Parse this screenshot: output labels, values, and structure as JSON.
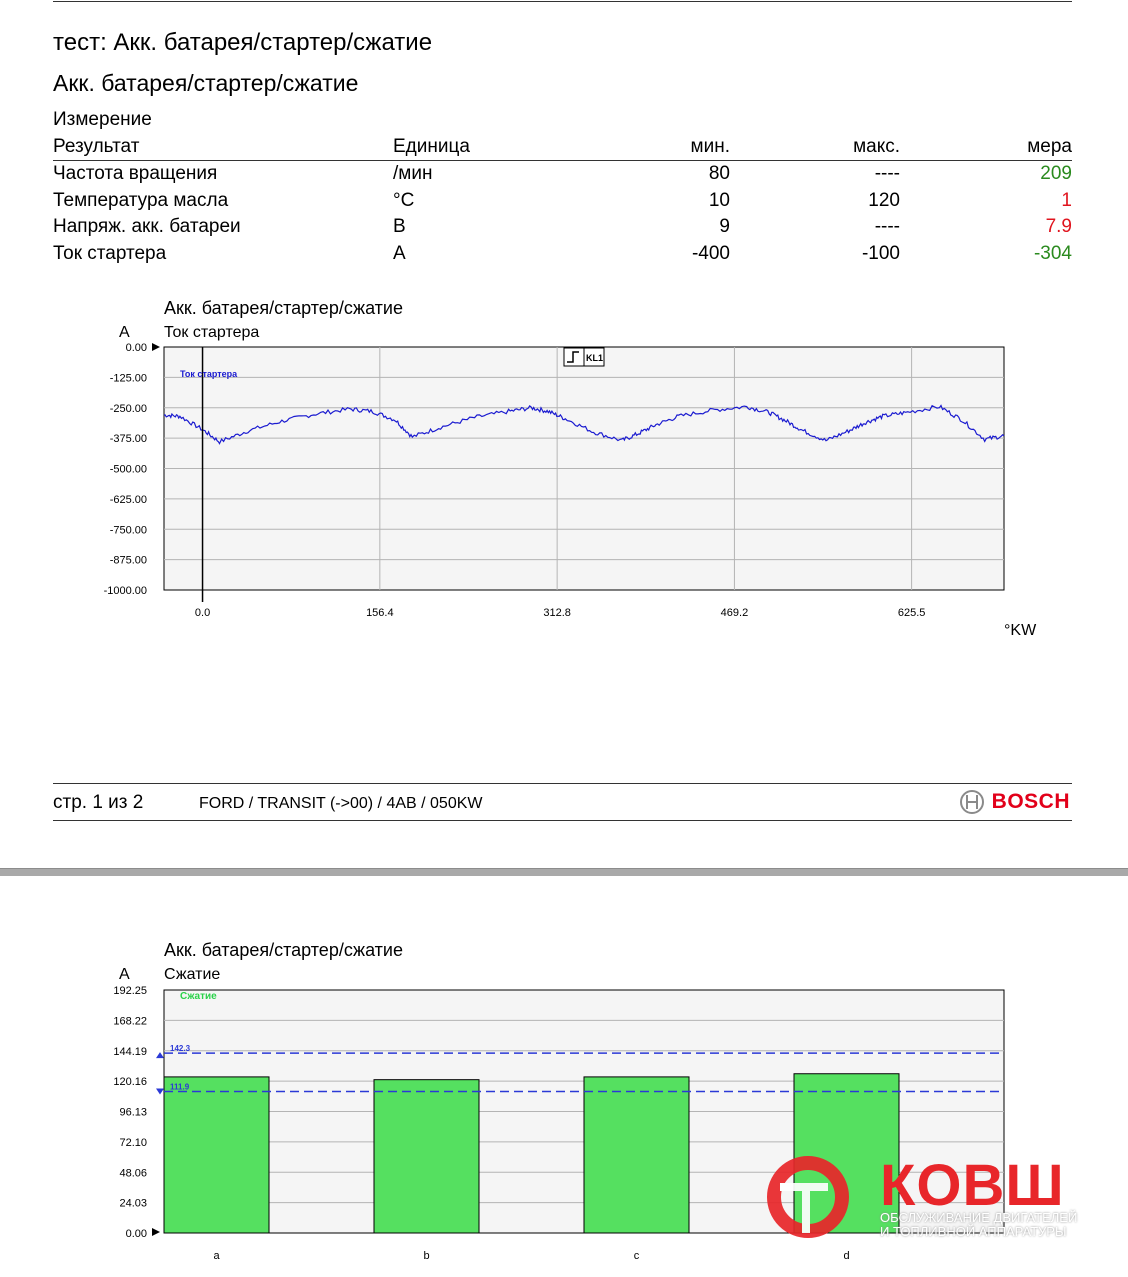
{
  "report": {
    "title": "тест: Акк. батарея/стартер/сжатие",
    "subtitle": "Акк. батарея/стартер/сжатие",
    "section_label": "Измерение",
    "table": {
      "headers": {
        "result": "Результат",
        "unit": "Единица",
        "min": "мин.",
        "max": "макс.",
        "measure": "мера"
      },
      "rows": [
        {
          "name": "Частота вращения",
          "unit": "/мин",
          "min": "80",
          "max": "----",
          "value": "209",
          "status": "good"
        },
        {
          "name": "Температура масла",
          "unit": "°C",
          "min": "10",
          "max": "120",
          "value": "1",
          "status": "bad"
        },
        {
          "name": "Напряж. акк. батареи",
          "unit": "В",
          "min": "9",
          "max": "----",
          "value": "7.9",
          "status": "bad"
        },
        {
          "name": "Ток стартера",
          "unit": "A",
          "min": "-400",
          "max": "-100",
          "value": "-304",
          "status": "good"
        }
      ]
    }
  },
  "chart_data": [
    {
      "type": "line",
      "title": "Акк. батарея/стартер/сжатие",
      "subtitle": "Ток стартера",
      "ylabel": "A",
      "xlabel": "°KW",
      "ylim": [
        -1000,
        0
      ],
      "xlim": [
        -34,
        707
      ],
      "y_ticks": [
        "0.00",
        "-125.00",
        "-250.00",
        "-375.00",
        "-500.00",
        "-625.00",
        "-750.00",
        "-875.00",
        "-1000.00"
      ],
      "x_ticks": [
        "0.0",
        "156.4",
        "312.8",
        "469.2",
        "625.5"
      ],
      "x_tick_values": [
        0,
        156.4,
        312.8,
        469.2,
        625.5
      ],
      "trigger_label": "KL1",
      "series": [
        {
          "name": "Ток стартера",
          "color": "#1b1bd0",
          "x": [
            -34,
            -20,
            0,
            15,
            40,
            70,
            100,
            130,
            150,
            170,
            185,
            210,
            240,
            270,
            290,
            305,
            320,
            345,
            370,
            385,
            400,
            420,
            450,
            480,
            500,
            515,
            530,
            550,
            570,
            585,
            600,
            620,
            650,
            670,
            690,
            707
          ],
          "y": [
            -280,
            -285,
            -340,
            -390,
            -345,
            -305,
            -275,
            -255,
            -265,
            -300,
            -370,
            -330,
            -290,
            -265,
            -250,
            -265,
            -295,
            -350,
            -385,
            -355,
            -320,
            -285,
            -260,
            -245,
            -270,
            -305,
            -345,
            -385,
            -345,
            -310,
            -285,
            -270,
            -245,
            -300,
            -380,
            -365
          ]
        }
      ]
    },
    {
      "type": "bar",
      "title": "Акк. батарея/стартер/сжатие",
      "subtitle": "Сжатие",
      "ylabel": "A",
      "ylim": [
        0,
        192.25
      ],
      "y_ticks": [
        "192.25",
        "168.22",
        "144.19",
        "120.16",
        "96.13",
        "72.10",
        "48.06",
        "24.03",
        "0.00"
      ],
      "categories": [
        "a",
        "b",
        "c",
        "d"
      ],
      "series": [
        {
          "name": "Сжатие",
          "color": "#55e060",
          "values": [
            123.5,
            121.3,
            123.5,
            126.0
          ]
        }
      ],
      "thresholds": [
        {
          "label": "142.3",
          "value": 142.3
        },
        {
          "label": "111.9",
          "value": 111.9
        }
      ],
      "threshold_color": "#2b39d6"
    }
  ],
  "footer": {
    "page": "стр. 1 из 2",
    "vehicle": "FORD / TRANSIT (->00) / 4AB / 050KW",
    "brand": "BOSCH"
  },
  "watermark": {
    "name": "КОВШ",
    "line1": "ОБСЛУЖИВАНИЕ ДВИГАТЕЛЕЙ",
    "line2": "И ТОПЛИВНОЙ АППАРАТУРЫ"
  }
}
